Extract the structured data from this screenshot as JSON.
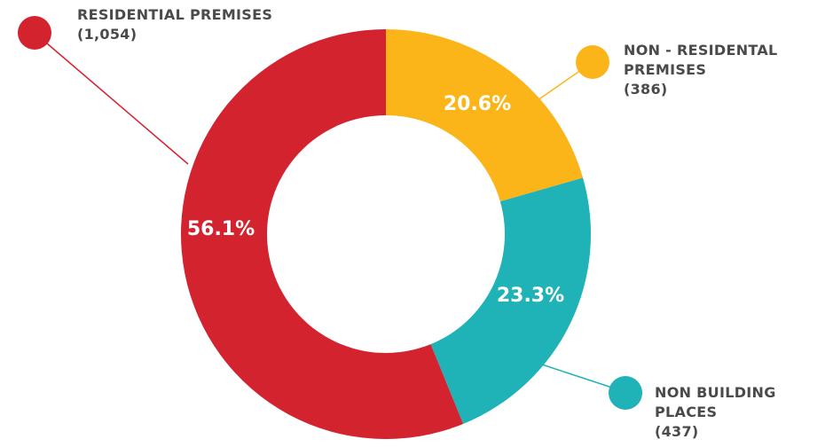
{
  "chart_data": {
    "type": "pie",
    "donut": true,
    "title": "",
    "legend_placement": "callouts around chart",
    "series": [
      {
        "name": "RESIDENTIAL PREMISES",
        "label_lines": [
          "RESIDENTIAL PREMISES",
          "(1,054)"
        ],
        "value": 1054,
        "percent": 56.1,
        "percent_label": "56.1%",
        "color": "#d2232f"
      },
      {
        "name": "NON - RESIDENTAL PREMISES",
        "label_lines": [
          "NON - RESIDENTAL",
          "PREMISES",
          "(386)"
        ],
        "value": 386,
        "percent": 20.6,
        "percent_label": "20.6%",
        "color": "#fbb519"
      },
      {
        "name": "NON BUILDING PLACES",
        "label_lines": [
          "NON BUILDING",
          "PLACES",
          "(437)"
        ],
        "value": 437,
        "percent": 23.3,
        "percent_label": "23.3%",
        "color": "#1fb2b6"
      }
    ]
  }
}
